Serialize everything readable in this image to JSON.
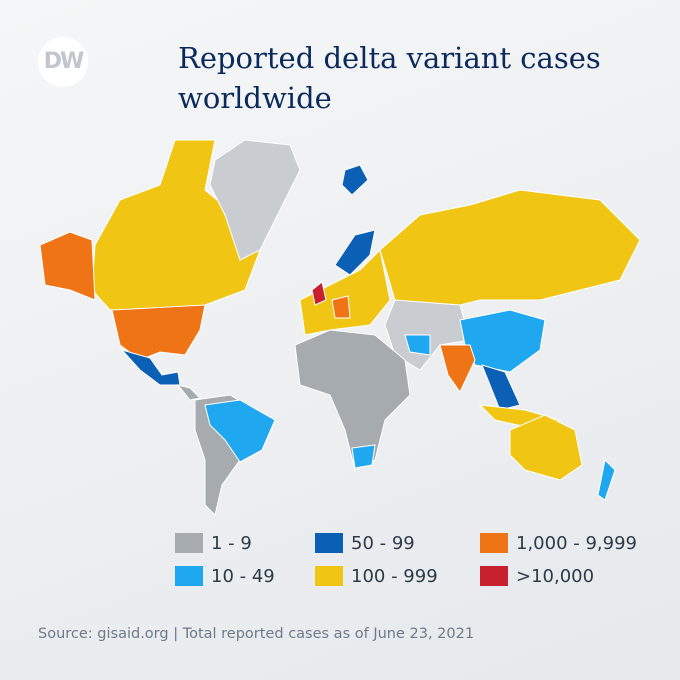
{
  "logo": "DW",
  "title": "Reported delta variant cases worldwide",
  "legend": [
    {
      "label": "1 - 9",
      "color": "#a6abb0"
    },
    {
      "label": "10 - 49",
      "color": "#1fa8ef"
    },
    {
      "label": "50 - 99",
      "color": "#0b5fb4"
    },
    {
      "label": "100 - 999",
      "color": "#f0c514"
    },
    {
      "label": "1,000 - 9,999",
      "color": "#ee7416"
    },
    {
      "label": ">10,000",
      "color": "#c8202f"
    }
  ],
  "source": "Source: gisaid.org | Total reported cases as of June 23, 2021"
}
